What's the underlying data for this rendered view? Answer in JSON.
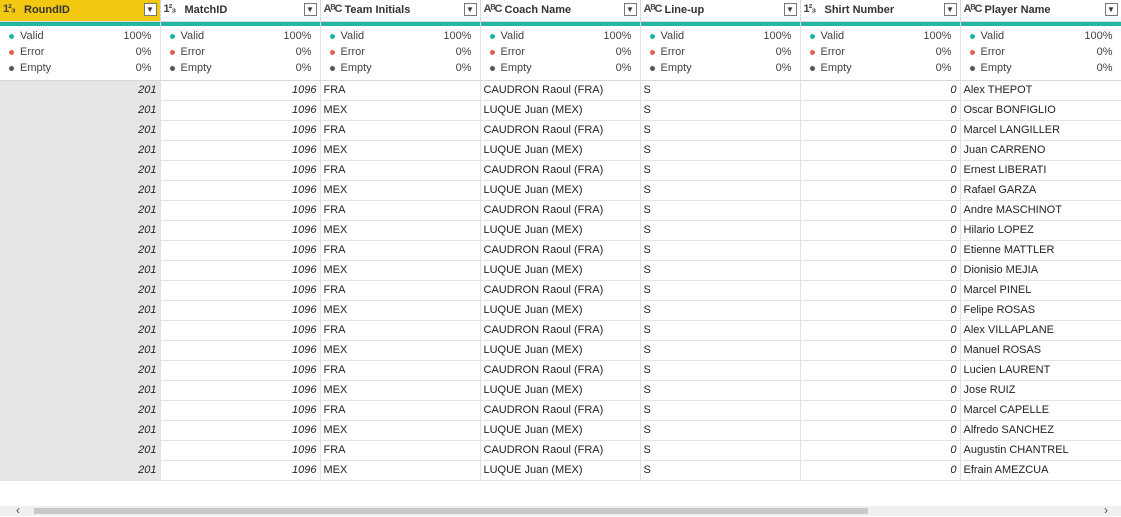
{
  "columns": [
    {
      "type_icon": "1²₃",
      "name": "RoundID",
      "dropdown": "▼",
      "selected": true,
      "numeric": true
    },
    {
      "type_icon": "1²₃",
      "name": "MatchID",
      "dropdown": "▼",
      "selected": false,
      "numeric": true
    },
    {
      "type_icon": "AᴮC",
      "name": "Team Initials",
      "dropdown": "▼",
      "selected": false,
      "numeric": false
    },
    {
      "type_icon": "AᴮC",
      "name": "Coach Name",
      "dropdown": "▼",
      "selected": false,
      "numeric": false
    },
    {
      "type_icon": "AᴮC",
      "name": "Line-up",
      "dropdown": "▼",
      "selected": false,
      "numeric": false
    },
    {
      "type_icon": "1²₃",
      "name": "Shirt Number",
      "dropdown": "▼",
      "selected": false,
      "numeric": true
    },
    {
      "type_icon": "AᴮC",
      "name": "Player Name",
      "dropdown": "▼",
      "selected": false,
      "numeric": false
    }
  ],
  "quality": {
    "valid": {
      "label": "Valid",
      "value": "100%",
      "color": "#1fb5a3"
    },
    "error": {
      "label": "Error",
      "value": "0%",
      "color": "#e8604c"
    },
    "empty": {
      "label": "Empty",
      "value": "0%",
      "color": "#555555"
    }
  },
  "rows": [
    [
      "201",
      "1096",
      "FRA",
      "CAUDRON Raoul (FRA)",
      "S",
      "0",
      "Alex THEPOT"
    ],
    [
      "201",
      "1096",
      "MEX",
      "LUQUE Juan (MEX)",
      "S",
      "0",
      "Oscar BONFIGLIO"
    ],
    [
      "201",
      "1096",
      "FRA",
      "CAUDRON Raoul (FRA)",
      "S",
      "0",
      "Marcel LANGILLER"
    ],
    [
      "201",
      "1096",
      "MEX",
      "LUQUE Juan (MEX)",
      "S",
      "0",
      "Juan CARRENO"
    ],
    [
      "201",
      "1096",
      "FRA",
      "CAUDRON Raoul (FRA)",
      "S",
      "0",
      "Ernest LIBERATI"
    ],
    [
      "201",
      "1096",
      "MEX",
      "LUQUE Juan (MEX)",
      "S",
      "0",
      "Rafael GARZA"
    ],
    [
      "201",
      "1096",
      "FRA",
      "CAUDRON Raoul (FRA)",
      "S",
      "0",
      "Andre MASCHINOT"
    ],
    [
      "201",
      "1096",
      "MEX",
      "LUQUE Juan (MEX)",
      "S",
      "0",
      "Hilario LOPEZ"
    ],
    [
      "201",
      "1096",
      "FRA",
      "CAUDRON Raoul (FRA)",
      "S",
      "0",
      "Etienne MATTLER"
    ],
    [
      "201",
      "1096",
      "MEX",
      "LUQUE Juan (MEX)",
      "S",
      "0",
      "Dionisio MEJIA"
    ],
    [
      "201",
      "1096",
      "FRA",
      "CAUDRON Raoul (FRA)",
      "S",
      "0",
      "Marcel PINEL"
    ],
    [
      "201",
      "1096",
      "MEX",
      "LUQUE Juan (MEX)",
      "S",
      "0",
      "Felipe ROSAS"
    ],
    [
      "201",
      "1096",
      "FRA",
      "CAUDRON Raoul (FRA)",
      "S",
      "0",
      "Alex VILLAPLANE"
    ],
    [
      "201",
      "1096",
      "MEX",
      "LUQUE Juan (MEX)",
      "S",
      "0",
      "Manuel ROSAS"
    ],
    [
      "201",
      "1096",
      "FRA",
      "CAUDRON Raoul (FRA)",
      "S",
      "0",
      "Lucien LAURENT"
    ],
    [
      "201",
      "1096",
      "MEX",
      "LUQUE Juan (MEX)",
      "S",
      "0",
      "Jose RUIZ"
    ],
    [
      "201",
      "1096",
      "FRA",
      "CAUDRON Raoul (FRA)",
      "S",
      "0",
      "Marcel CAPELLE"
    ],
    [
      "201",
      "1096",
      "MEX",
      "LUQUE Juan (MEX)",
      "S",
      "0",
      "Alfredo SANCHEZ"
    ],
    [
      "201",
      "1096",
      "FRA",
      "CAUDRON Raoul (FRA)",
      "S",
      "0",
      "Augustin CHANTREL"
    ],
    [
      "201",
      "1096",
      "MEX",
      "LUQUE Juan (MEX)",
      "S",
      "0",
      "Efrain AMEZCUA"
    ]
  ],
  "scrollbar": {
    "left_arrow": "‹",
    "right_arrow": "›"
  }
}
